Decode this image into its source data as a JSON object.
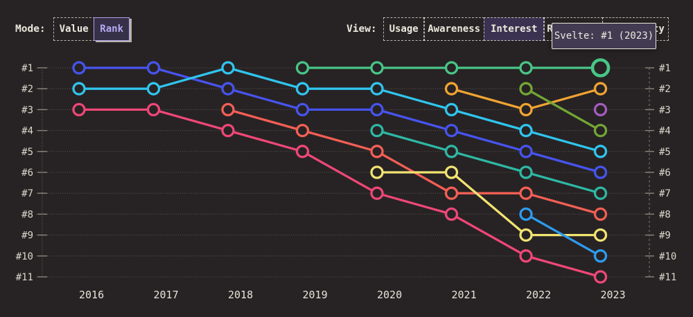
{
  "palette": {
    "background": "#272324",
    "cream_text": "#EDE8DD",
    "accent_purple": "#B5A9F0",
    "selected_bg": "#3A3250",
    "tooltip_bg": "#433B52"
  },
  "header": {
    "mode": {
      "label": "Mode:",
      "options": [
        {
          "label": "Value",
          "active": false
        },
        {
          "label": "Rank",
          "active": true
        }
      ]
    },
    "view": {
      "label": "View:",
      "options": [
        {
          "label": "Usage",
          "active": false
        },
        {
          "label": "Awareness",
          "active": false
        },
        {
          "label": "Interest",
          "active": true
        },
        {
          "label": "Retention",
          "active": false
        },
        {
          "label": "Positivity",
          "active": false
        }
      ]
    }
  },
  "tooltip": {
    "text": "Svelte: #1 (2023)"
  },
  "chart_data": {
    "type": "line",
    "subtype": "bump-rank-chart",
    "years": [
      2016,
      2017,
      2018,
      2019,
      2020,
      2021,
      2022,
      2023
    ],
    "rank_labels": [
      "#1",
      "#2",
      "#3",
      "#4",
      "#5",
      "#6",
      "#7",
      "#8",
      "#9",
      "#10",
      "#11"
    ],
    "rank_axis": {
      "min": 1,
      "max": 11,
      "left_labels": true,
      "right_labels": true,
      "grid": "dotted"
    },
    "legend": "none",
    "series": [
      {
        "id": "indigo",
        "color": "#4754EE",
        "ranks": [
          1,
          1,
          2,
          3,
          3,
          4,
          5,
          6
        ]
      },
      {
        "id": "cyan",
        "color": "#30C5EE",
        "ranks": [
          2,
          2,
          1,
          2,
          2,
          3,
          4,
          5
        ]
      },
      {
        "id": "rose",
        "color": "#EF4778",
        "ranks": [
          3,
          3,
          4,
          5,
          7,
          8,
          10,
          11
        ]
      },
      {
        "id": "coral",
        "color": "#F45F55",
        "ranks": [
          null,
          null,
          3,
          4,
          5,
          7,
          7,
          8
        ]
      },
      {
        "id": "svelte-green",
        "label": "Svelte",
        "color": "#48C687",
        "ranks": [
          null,
          null,
          null,
          1,
          1,
          1,
          1,
          1
        ],
        "highlighted_year": 2023
      },
      {
        "id": "teal",
        "color": "#2EB8A4",
        "ranks": [
          null,
          null,
          null,
          null,
          4,
          5,
          6,
          7
        ]
      },
      {
        "id": "yellow",
        "color": "#F2E372",
        "ranks": [
          null,
          null,
          null,
          null,
          6,
          6,
          9,
          9
        ]
      },
      {
        "id": "orange",
        "color": "#F0A432",
        "ranks": [
          null,
          null,
          null,
          null,
          null,
          2,
          3,
          2
        ]
      },
      {
        "id": "olive",
        "color": "#73A735",
        "ranks": [
          null,
          null,
          null,
          null,
          null,
          null,
          2,
          4
        ]
      },
      {
        "id": "sky",
        "color": "#2D9CEF",
        "ranks": [
          null,
          null,
          null,
          null,
          null,
          null,
          8,
          10
        ]
      },
      {
        "id": "purple",
        "color": "#A35CC0",
        "ranks": [
          null,
          null,
          null,
          null,
          null,
          null,
          null,
          3
        ]
      }
    ]
  }
}
